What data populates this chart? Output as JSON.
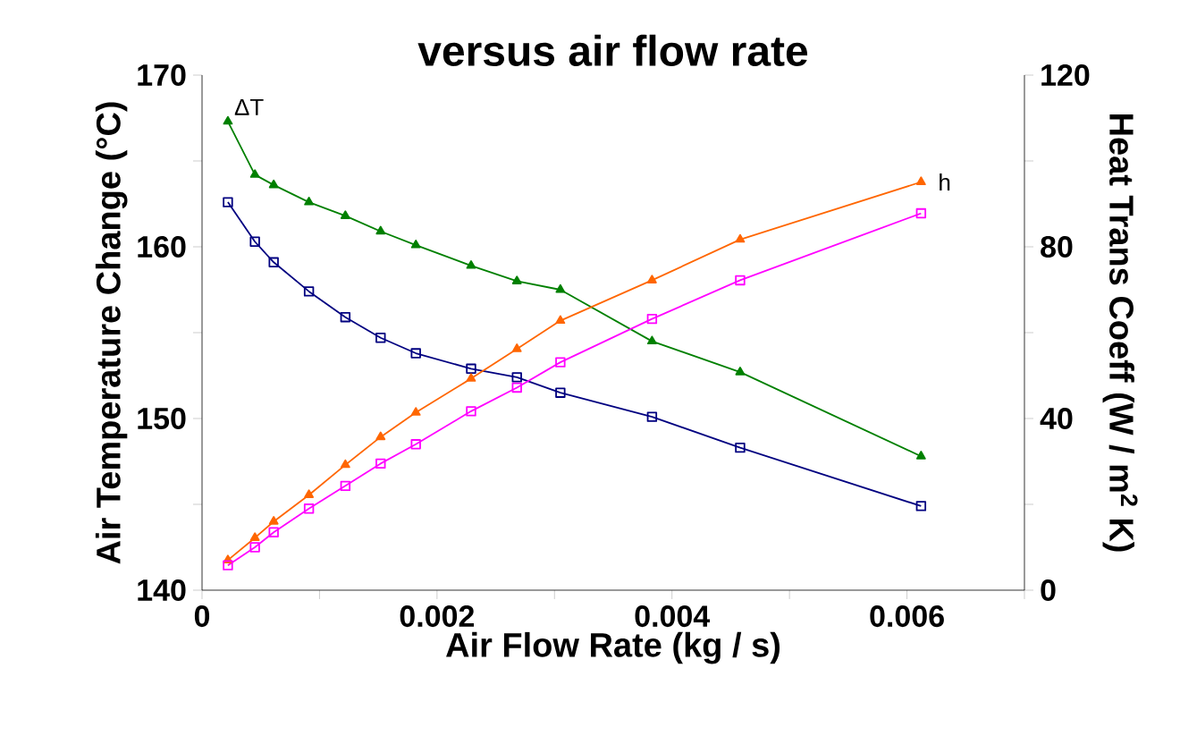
{
  "chart_data": {
    "type": "line",
    "title": "versus air flow rate",
    "xlabel": "Air Flow Rate (kg / s)",
    "ylabel": "Air Temperature Change (°C)",
    "y2label": "Heat Trans Coeff (W / m$^{2}$ K)",
    "x": [
      0.00022,
      0.00045,
      0.00061,
      0.00091,
      0.00122,
      0.00152,
      0.00182,
      0.00229,
      0.00268,
      0.00305,
      0.00383,
      0.00458,
      0.00612
    ],
    "series": [
      {
        "name": "ΔT",
        "color": "#008000",
        "marker": "triangle",
        "values": [
          167.3,
          164.2,
          163.6,
          162.6,
          161.8,
          160.9,
          160.1,
          158.9,
          158.0,
          157.5,
          154.5,
          152.7,
          147.8
        ]
      },
      {
        "color": "#000080",
        "marker": "square",
        "values": [
          162.6,
          160.3,
          159.1,
          157.4,
          155.9,
          154.7,
          153.8,
          152.9,
          152.4,
          151.5,
          150.1,
          148.3,
          144.9
        ]
      },
      {
        "name": "h",
        "color": "#ff6600",
        "marker": "triangle",
        "axis": "y2",
        "values": [
          7.0,
          12.2,
          16.0,
          22.2,
          29.2,
          35.7,
          41.4,
          49.3,
          56.2,
          62.8,
          72.2,
          81.7,
          95.1
        ]
      },
      {
        "color": "#ff00ff",
        "marker": "square",
        "axis": "y2",
        "values": [
          5.8,
          10.0,
          13.5,
          19.0,
          24.3,
          29.5,
          34.0,
          41.7,
          47.2,
          53.1,
          63.2,
          72.2,
          87.8
        ]
      }
    ],
    "xlim": [
      0,
      0.007
    ],
    "xticks": [
      0,
      {
        "value": 0.001,
        "label": null
      },
      0.002,
      {
        "value": 0.003,
        "label": null
      },
      0.004,
      {
        "value": 0.005,
        "label": null
      },
      0.006,
      {
        "value": 0.007,
        "label": null
      }
    ],
    "ylim": [
      140,
      170
    ],
    "yticks": [
      140,
      {
        "value": 145,
        "label": null
      },
      150,
      {
        "value": 155,
        "label": null
      },
      160,
      {
        "value": 165,
        "label": null
      },
      170
    ],
    "y2lim": [
      0,
      120
    ],
    "y2ticks": [
      0,
      {
        "value": 20,
        "label": null
      },
      40,
      {
        "value": 60,
        "label": null
      },
      80,
      {
        "value": 100,
        "label": null
      },
      120
    ],
    "grid": false
  }
}
